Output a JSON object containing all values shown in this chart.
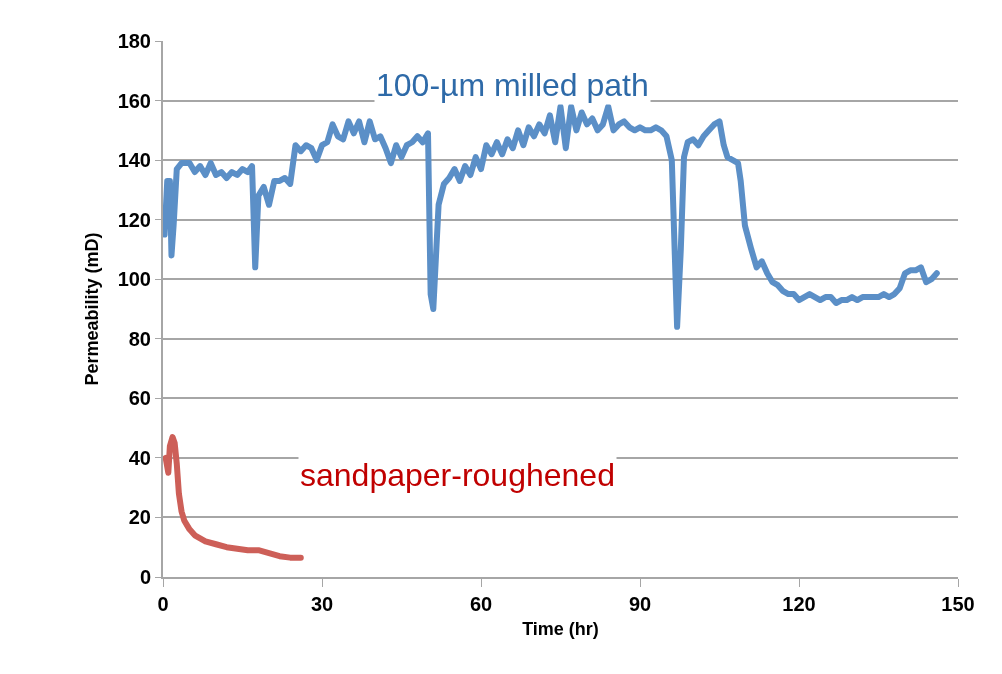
{
  "chart_data": {
    "type": "line",
    "xlabel": "Time (hr)",
    "ylabel": "Permeability (mD)",
    "xlim": [
      0,
      150
    ],
    "xticks": [
      0,
      30,
      60,
      90,
      120,
      150
    ],
    "ylim": [
      0,
      180
    ],
    "yticks": [
      0,
      20,
      40,
      60,
      80,
      100,
      120,
      140,
      160,
      180
    ],
    "grid": "y",
    "legend": false,
    "marker": "none",
    "line_style": "solid",
    "series": [
      {
        "name": "100-µm milled path",
        "color": "#5b8fc7",
        "x": [
          0.3,
          0.8,
          1.3,
          1.6,
          2,
          2.6,
          3.5,
          5,
          6,
          7,
          8,
          9,
          10,
          11,
          12,
          13,
          14,
          15,
          16,
          16.8,
          17.4,
          18,
          19,
          20,
          21,
          22,
          23,
          24,
          25,
          26,
          27,
          28,
          29,
          30,
          31,
          32,
          33,
          34,
          35,
          36,
          37,
          38,
          39,
          40,
          41,
          42,
          43,
          44,
          45,
          46,
          47,
          48,
          49,
          50,
          50.5,
          51,
          52,
          53,
          54,
          55,
          56,
          57,
          58,
          59,
          60,
          61,
          62,
          63,
          64,
          65,
          66,
          67,
          68,
          69,
          70,
          71,
          72,
          73,
          74,
          75,
          76,
          77,
          78,
          79,
          80,
          81,
          82,
          83,
          84,
          85,
          86,
          87,
          88,
          89,
          90,
          91,
          92,
          93,
          94,
          95,
          96,
          97,
          97.7,
          98.3,
          99,
          100,
          101,
          102,
          103,
          104,
          105,
          105.8,
          106.5,
          107.5,
          108.5,
          109,
          109.8,
          111,
          112,
          113,
          114,
          115,
          116,
          117,
          118,
          119,
          120,
          121,
          122,
          123,
          124,
          125,
          126,
          127,
          128,
          129,
          130,
          131,
          132,
          133,
          134,
          135,
          136,
          137,
          138,
          139,
          140,
          141,
          142,
          143,
          144,
          145,
          146
        ],
        "values": [
          115,
          133,
          133,
          108,
          118,
          137,
          139,
          139,
          136,
          138,
          135,
          139,
          135,
          136,
          134,
          136,
          135,
          137,
          136,
          138,
          104,
          128,
          131,
          125,
          133,
          133,
          134,
          132,
          145,
          143,
          145,
          144,
          140,
          145,
          146,
          152,
          148,
          147,
          153,
          149,
          153,
          146,
          153,
          147,
          148,
          144,
          139,
          145,
          141,
          145,
          146,
          148,
          146,
          149,
          95,
          90,
          125,
          132,
          134,
          137,
          133,
          138,
          135,
          141,
          137,
          145,
          142,
          146,
          142,
          147,
          144,
          150,
          145,
          151,
          148,
          152,
          149,
          155,
          146,
          158,
          144,
          158,
          150,
          156,
          152,
          154,
          150,
          152,
          158,
          150,
          152,
          153,
          151,
          150,
          151,
          150,
          150,
          151,
          150,
          148,
          140,
          84,
          110,
          141,
          146,
          147,
          145,
          148,
          150,
          152,
          153,
          145,
          141,
          140,
          139,
          133,
          118,
          110,
          104,
          106,
          102,
          99,
          98,
          96,
          95,
          95,
          93,
          94,
          95,
          94,
          93,
          94,
          94,
          92,
          93,
          93,
          94,
          93,
          94,
          94,
          94,
          94,
          95,
          94,
          95,
          97,
          102,
          103,
          103,
          104,
          99,
          100,
          102
        ]
      },
      {
        "name": "sandpaper-roughened",
        "color": "#cd5f58",
        "x": [
          0.5,
          1,
          1.3,
          1.8,
          2.2,
          2.6,
          3,
          3.5,
          4,
          5,
          6,
          7,
          8,
          10,
          12,
          14,
          16,
          18,
          20,
          22,
          24,
          26
        ],
        "values": [
          40,
          35,
          44,
          47,
          45,
          38,
          28,
          22,
          19,
          16,
          14,
          13,
          12,
          11,
          10,
          9.5,
          9,
          9,
          8,
          7,
          6.5,
          6.5
        ]
      }
    ]
  }
}
